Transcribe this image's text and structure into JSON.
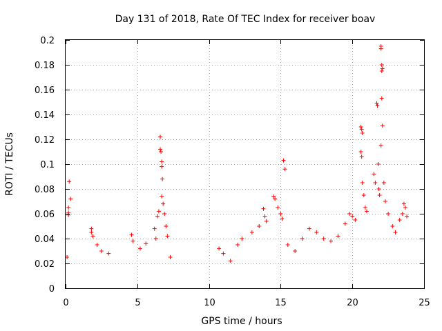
{
  "chart_data": {
    "type": "scatter",
    "title": "Day 131 of 2018, Rate Of TEC Index for receiver boav",
    "xlabel": "GPS time / hours",
    "ylabel": "ROTI / TECUs",
    "xlim": [
      0,
      25
    ],
    "ylim": [
      0,
      0.2
    ],
    "xticks": [
      0,
      5,
      10,
      15,
      20,
      25
    ],
    "xtick_labels": [
      "0",
      "5",
      "10",
      "15",
      "20",
      "25"
    ],
    "yticks": [
      0,
      0.02,
      0.04,
      0.06,
      0.08,
      0.1,
      0.12,
      0.14,
      0.16,
      0.18,
      0.2
    ],
    "ytick_labels": [
      "0",
      "0.02",
      "0.04",
      "0.06",
      "0.08",
      "0.1",
      "0.12",
      "0.14",
      "0.16",
      "0.18",
      "0.2"
    ],
    "grid": true,
    "marker": "plus",
    "color": "#ff0000",
    "series": [
      {
        "name": "ROTI",
        "points": [
          [
            0.2,
            0.061
          ],
          [
            0.2,
            0.059
          ],
          [
            0.2,
            0.065
          ],
          [
            0.25,
            0.086
          ],
          [
            0.35,
            0.072
          ],
          [
            0.1,
            0.025
          ],
          [
            1.8,
            0.048
          ],
          [
            1.8,
            0.045
          ],
          [
            1.9,
            0.042
          ],
          [
            2.2,
            0.035
          ],
          [
            2.5,
            0.03
          ],
          [
            3.0,
            0.028
          ],
          [
            4.6,
            0.043
          ],
          [
            4.7,
            0.038
          ],
          [
            5.2,
            0.032
          ],
          [
            5.6,
            0.036
          ],
          [
            6.2,
            0.048
          ],
          [
            6.4,
            0.058
          ],
          [
            6.5,
            0.062
          ],
          [
            6.6,
            0.122
          ],
          [
            6.6,
            0.112
          ],
          [
            6.65,
            0.11
          ],
          [
            6.7,
            0.102
          ],
          [
            6.7,
            0.098
          ],
          [
            6.75,
            0.088
          ],
          [
            6.7,
            0.074
          ],
          [
            6.8,
            0.068
          ],
          [
            6.9,
            0.06
          ],
          [
            7.0,
            0.05
          ],
          [
            7.1,
            0.042
          ],
          [
            6.3,
            0.04
          ],
          [
            7.3,
            0.025
          ],
          [
            10.7,
            0.032
          ],
          [
            11.0,
            0.028
          ],
          [
            11.5,
            0.022
          ],
          [
            12.0,
            0.035
          ],
          [
            12.3,
            0.04
          ],
          [
            13.0,
            0.045
          ],
          [
            13.5,
            0.05
          ],
          [
            13.8,
            0.064
          ],
          [
            13.9,
            0.058
          ],
          [
            14.0,
            0.054
          ],
          [
            14.5,
            0.074
          ],
          [
            14.6,
            0.072
          ],
          [
            14.8,
            0.065
          ],
          [
            15.0,
            0.06
          ],
          [
            15.1,
            0.056
          ],
          [
            15.2,
            0.103
          ],
          [
            15.3,
            0.096
          ],
          [
            15.5,
            0.035
          ],
          [
            16.0,
            0.03
          ],
          [
            16.5,
            0.04
          ],
          [
            17.0,
            0.048
          ],
          [
            17.5,
            0.045
          ],
          [
            18.0,
            0.04
          ],
          [
            18.5,
            0.038
          ],
          [
            19.0,
            0.042
          ],
          [
            19.5,
            0.052
          ],
          [
            19.8,
            0.06
          ],
          [
            20.0,
            0.058
          ],
          [
            20.2,
            0.055
          ],
          [
            20.6,
            0.13
          ],
          [
            20.65,
            0.128
          ],
          [
            20.7,
            0.125
          ],
          [
            20.6,
            0.11
          ],
          [
            20.65,
            0.106
          ],
          [
            20.7,
            0.085
          ],
          [
            20.8,
            0.075
          ],
          [
            20.9,
            0.065
          ],
          [
            21.0,
            0.062
          ],
          [
            21.5,
            0.092
          ],
          [
            21.6,
            0.085
          ],
          [
            21.7,
            0.149
          ],
          [
            21.75,
            0.147
          ],
          [
            21.8,
            0.1
          ],
          [
            21.85,
            0.08
          ],
          [
            21.9,
            0.075
          ],
          [
            22.0,
            0.195
          ],
          [
            22.0,
            0.193
          ],
          [
            22.05,
            0.18
          ],
          [
            22.05,
            0.175
          ],
          [
            22.1,
            0.177
          ],
          [
            22.05,
            0.153
          ],
          [
            22.1,
            0.131
          ],
          [
            22.0,
            0.115
          ],
          [
            22.2,
            0.085
          ],
          [
            22.3,
            0.07
          ],
          [
            22.5,
            0.06
          ],
          [
            22.8,
            0.05
          ],
          [
            23.0,
            0.045
          ],
          [
            23.3,
            0.055
          ],
          [
            23.5,
            0.06
          ],
          [
            23.6,
            0.068
          ],
          [
            23.7,
            0.065
          ],
          [
            23.8,
            0.058
          ]
        ]
      }
    ]
  }
}
